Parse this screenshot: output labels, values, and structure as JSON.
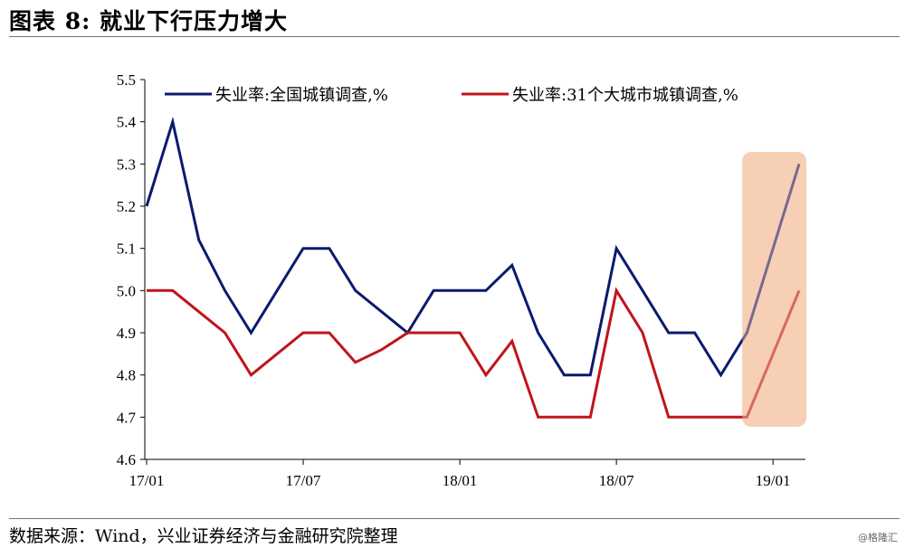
{
  "page": {
    "title": "图表 8:  就业下行压力增大",
    "source": "数据来源：Wind，兴业证券经济与金融研究院整理",
    "watermark": "@格隆汇"
  },
  "chart_data": {
    "type": "line",
    "title": "",
    "xlabel": "",
    "ylabel": "",
    "x": [
      "17/01",
      "17/02",
      "17/03",
      "17/04",
      "17/05",
      "17/06",
      "17/07",
      "17/08",
      "17/09",
      "17/10",
      "17/11",
      "17/12",
      "18/01",
      "18/02",
      "18/03",
      "18/04",
      "18/05",
      "18/06",
      "18/07",
      "18/08",
      "18/09",
      "18/10",
      "18/11",
      "18/12",
      "19/01",
      "19/02"
    ],
    "x_tick_labels": [
      "17/01",
      "17/07",
      "18/01",
      "18/07",
      "19/01"
    ],
    "ylim": [
      4.6,
      5.5
    ],
    "y_ticks": [
      "4.6",
      "4.7",
      "4.8",
      "4.9",
      "5.0",
      "5.1",
      "5.2",
      "5.3",
      "5.4",
      "5.5"
    ],
    "legend_position": "top",
    "series": [
      {
        "name": "失业率:全国城镇调查,%",
        "color": "#0b1a6e",
        "values": [
          5.2,
          5.4,
          5.12,
          5.0,
          4.9,
          5.0,
          5.1,
          5.1,
          5.0,
          4.95,
          4.9,
          5.0,
          5.0,
          5.0,
          5.06,
          4.9,
          4.8,
          4.8,
          5.1,
          5.0,
          4.9,
          4.9,
          4.8,
          4.9,
          5.1,
          5.3
        ]
      },
      {
        "name": "失业率:31个大城市城镇调查,%",
        "color": "#c0141a",
        "values": [
          5.0,
          5.0,
          4.95,
          4.9,
          4.8,
          4.85,
          4.9,
          4.9,
          4.83,
          4.86,
          4.9,
          4.9,
          4.9,
          4.8,
          4.88,
          4.7,
          4.7,
          4.7,
          5.0,
          4.9,
          4.7,
          4.7,
          4.7,
          4.7,
          4.85,
          5.0
        ]
      }
    ],
    "highlight": {
      "from": "19/01",
      "to": "19/02",
      "color": "#f7cfb5"
    }
  }
}
